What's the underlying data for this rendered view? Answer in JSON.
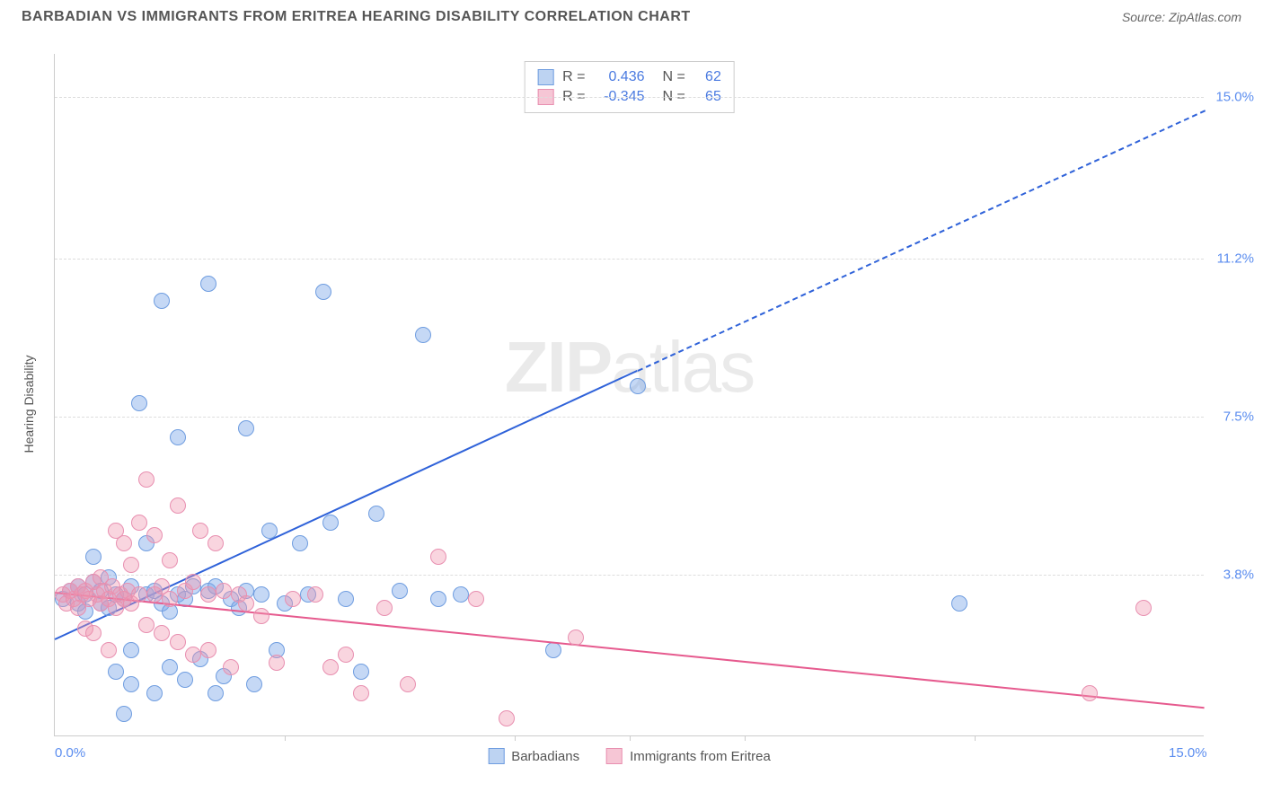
{
  "header": {
    "title": "BARBADIAN VS IMMIGRANTS FROM ERITREA HEARING DISABILITY CORRELATION CHART",
    "source_prefix": "Source: ",
    "source": "ZipAtlas.com"
  },
  "y_axis_label": "Hearing Disability",
  "watermark": {
    "zip": "ZIP",
    "atlas": "atlas"
  },
  "chart": {
    "type": "scatter",
    "xlim": [
      0,
      15
    ],
    "ylim": [
      0,
      16
    ],
    "x_ticks": [
      0.0,
      15.0
    ],
    "x_tick_labels": [
      "0.0%",
      "15.0%"
    ],
    "x_minor_ticks": [
      3.0,
      6.0,
      7.5,
      9.0,
      12.0
    ],
    "y_ticks": [
      3.8,
      7.5,
      11.2,
      15.0
    ],
    "y_tick_labels": [
      "3.8%",
      "7.5%",
      "11.2%",
      "15.0%"
    ],
    "grid_color": "#dddddd",
    "axis_color": "#cccccc",
    "background_color": "#ffffff",
    "series": [
      {
        "name": "Barbadians",
        "color_fill": "rgba(127,169,232,0.45)",
        "color_stroke": "#6f9de0",
        "swatch_fill": "#bdd3f2",
        "swatch_border": "#6f9de0",
        "marker_radius": 9,
        "R": "0.436",
        "N": "62",
        "trend": {
          "x1": 0,
          "y1": 2.3,
          "x2": 7.6,
          "y2": 8.6,
          "color": "#2f62d9"
        },
        "trend_dashed": {
          "x1": 7.6,
          "y1": 8.6,
          "x2": 15.0,
          "y2": 14.7,
          "color": "#2f62d9"
        },
        "points": [
          [
            0.1,
            3.2
          ],
          [
            0.2,
            3.4
          ],
          [
            0.3,
            3.1
          ],
          [
            0.3,
            3.5
          ],
          [
            0.4,
            2.9
          ],
          [
            0.4,
            3.3
          ],
          [
            0.5,
            3.6
          ],
          [
            0.5,
            4.2
          ],
          [
            0.6,
            3.1
          ],
          [
            0.6,
            3.4
          ],
          [
            0.7,
            3.0
          ],
          [
            0.7,
            3.7
          ],
          [
            0.8,
            1.5
          ],
          [
            0.8,
            3.3
          ],
          [
            0.9,
            0.5
          ],
          [
            0.9,
            3.2
          ],
          [
            1.0,
            1.2
          ],
          [
            1.0,
            2.0
          ],
          [
            1.0,
            3.5
          ],
          [
            1.1,
            7.8
          ],
          [
            1.2,
            3.3
          ],
          [
            1.2,
            4.5
          ],
          [
            1.3,
            1.0
          ],
          [
            1.3,
            3.4
          ],
          [
            1.4,
            3.1
          ],
          [
            1.4,
            10.2
          ],
          [
            1.5,
            1.6
          ],
          [
            1.5,
            2.9
          ],
          [
            1.6,
            3.3
          ],
          [
            1.6,
            7.0
          ],
          [
            1.7,
            1.3
          ],
          [
            1.7,
            3.2
          ],
          [
            1.8,
            3.5
          ],
          [
            1.9,
            1.8
          ],
          [
            2.0,
            3.4
          ],
          [
            2.0,
            10.6
          ],
          [
            2.1,
            1.0
          ],
          [
            2.1,
            3.5
          ],
          [
            2.2,
            1.4
          ],
          [
            2.3,
            3.2
          ],
          [
            2.4,
            3.0
          ],
          [
            2.5,
            7.2
          ],
          [
            2.5,
            3.4
          ],
          [
            2.6,
            1.2
          ],
          [
            2.7,
            3.3
          ],
          [
            2.8,
            4.8
          ],
          [
            2.9,
            2.0
          ],
          [
            3.0,
            3.1
          ],
          [
            3.2,
            4.5
          ],
          [
            3.3,
            3.3
          ],
          [
            3.5,
            10.4
          ],
          [
            3.6,
            5.0
          ],
          [
            3.8,
            3.2
          ],
          [
            4.0,
            1.5
          ],
          [
            4.2,
            5.2
          ],
          [
            4.5,
            3.4
          ],
          [
            4.8,
            9.4
          ],
          [
            5.0,
            3.2
          ],
          [
            5.3,
            3.3
          ],
          [
            6.5,
            2.0
          ],
          [
            7.6,
            8.2
          ],
          [
            11.8,
            3.1
          ]
        ]
      },
      {
        "name": "Immigrants from Eritrea",
        "color_fill": "rgba(240,150,175,0.40)",
        "color_stroke": "#e88fb0",
        "swatch_fill": "#f6c6d5",
        "swatch_border": "#e88fb0",
        "marker_radius": 9,
        "R": "-0.345",
        "N": "65",
        "trend": {
          "x1": 0,
          "y1": 3.4,
          "x2": 15.0,
          "y2": 0.7,
          "color": "#e65a8e"
        },
        "points": [
          [
            0.1,
            3.3
          ],
          [
            0.15,
            3.1
          ],
          [
            0.2,
            3.4
          ],
          [
            0.25,
            3.2
          ],
          [
            0.3,
            3.5
          ],
          [
            0.3,
            3.0
          ],
          [
            0.35,
            3.3
          ],
          [
            0.4,
            3.4
          ],
          [
            0.4,
            2.5
          ],
          [
            0.45,
            3.2
          ],
          [
            0.5,
            3.6
          ],
          [
            0.5,
            2.4
          ],
          [
            0.55,
            3.3
          ],
          [
            0.6,
            3.1
          ],
          [
            0.6,
            3.7
          ],
          [
            0.65,
            3.4
          ],
          [
            0.7,
            3.2
          ],
          [
            0.7,
            2.0
          ],
          [
            0.75,
            3.5
          ],
          [
            0.8,
            3.0
          ],
          [
            0.8,
            4.8
          ],
          [
            0.85,
            3.3
          ],
          [
            0.9,
            3.2
          ],
          [
            0.9,
            4.5
          ],
          [
            0.95,
            3.4
          ],
          [
            1.0,
            4.0
          ],
          [
            1.0,
            3.1
          ],
          [
            1.1,
            3.3
          ],
          [
            1.1,
            5.0
          ],
          [
            1.2,
            6.0
          ],
          [
            1.2,
            2.6
          ],
          [
            1.3,
            3.3
          ],
          [
            1.3,
            4.7
          ],
          [
            1.4,
            2.4
          ],
          [
            1.4,
            3.5
          ],
          [
            1.5,
            4.1
          ],
          [
            1.5,
            3.2
          ],
          [
            1.6,
            5.4
          ],
          [
            1.6,
            2.2
          ],
          [
            1.7,
            3.4
          ],
          [
            1.8,
            3.6
          ],
          [
            1.8,
            1.9
          ],
          [
            1.9,
            4.8
          ],
          [
            2.0,
            3.3
          ],
          [
            2.0,
            2.0
          ],
          [
            2.1,
            4.5
          ],
          [
            2.2,
            3.4
          ],
          [
            2.3,
            1.6
          ],
          [
            2.4,
            3.3
          ],
          [
            2.5,
            3.1
          ],
          [
            2.7,
            2.8
          ],
          [
            2.9,
            1.7
          ],
          [
            3.1,
            3.2
          ],
          [
            3.4,
            3.3
          ],
          [
            3.6,
            1.6
          ],
          [
            3.8,
            1.9
          ],
          [
            4.0,
            1.0
          ],
          [
            4.3,
            3.0
          ],
          [
            4.6,
            1.2
          ],
          [
            5.0,
            4.2
          ],
          [
            5.5,
            3.2
          ],
          [
            5.9,
            0.4
          ],
          [
            6.8,
            2.3
          ],
          [
            13.5,
            1.0
          ],
          [
            14.2,
            3.0
          ]
        ]
      }
    ]
  },
  "stats_box": {
    "R_label": "R =",
    "N_label": "N ="
  },
  "legend": {
    "items": [
      {
        "label": "Barbadians",
        "series": 0
      },
      {
        "label": "Immigrants from Eritrea",
        "series": 1
      }
    ]
  }
}
